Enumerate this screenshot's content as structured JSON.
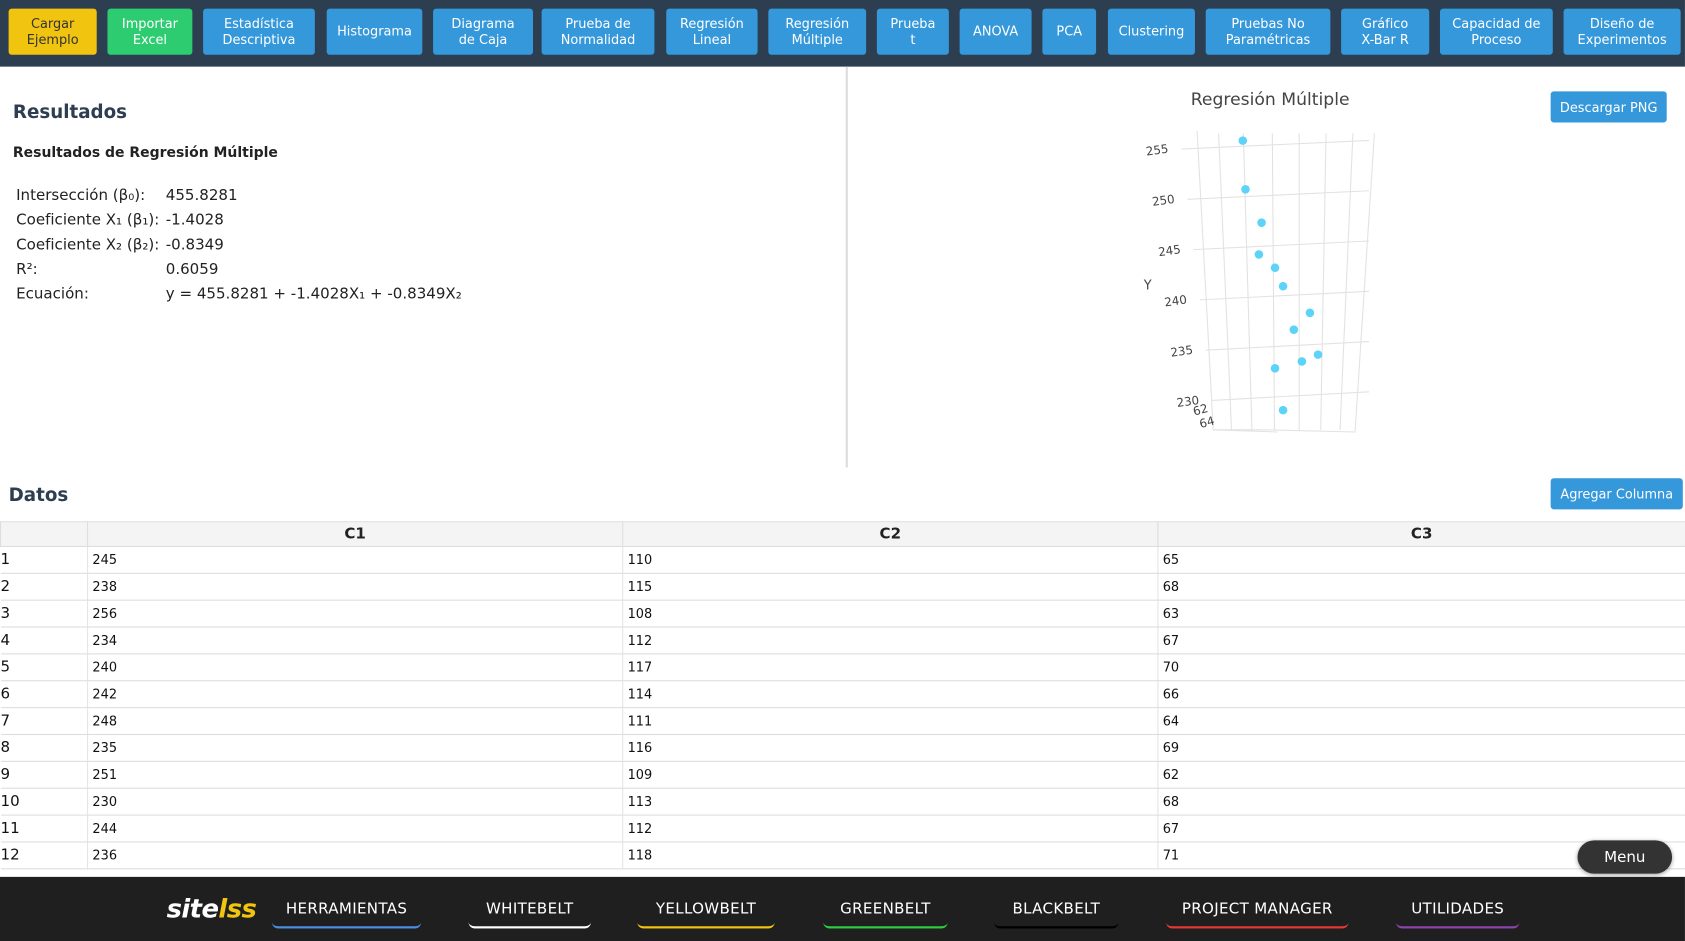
{
  "toolbar": {
    "buttons": [
      "Cargar\nEjemplo",
      "Importar\nExcel",
      "Estadística\nDescriptiva",
      "Histograma",
      "Diagrama\nde Caja",
      "Prueba de\nNormalidad",
      "Regresión\nLineal",
      "Regresión\nMúltiple",
      "Prueba\nt",
      "ANOVA",
      "PCA",
      "Clustering",
      "Pruebas No\nParamétricas",
      "Gráfico\nX-Bar R",
      "Capacidad de\nProceso",
      "Diseño de\nExperimentos"
    ]
  },
  "results": {
    "heading": "Resultados",
    "subheading": "Resultados de Regresión Múltiple",
    "rows": [
      {
        "label": "Intersección (β₀):",
        "value": "455.8281"
      },
      {
        "label": "Coeficiente X₁ (β₁):",
        "value": "-1.4028"
      },
      {
        "label": "Coeficiente X₂ (β₂):",
        "value": "-0.8349"
      },
      {
        "label": "R²:",
        "value": "0.6059"
      },
      {
        "label": "Ecuación:",
        "value": "y = 455.8281 + -1.4028X₁ + -0.8349X₂"
      }
    ]
  },
  "chart_data": {
    "type": "scatter3d",
    "title": "Regresión Múltiple",
    "y_label": "Y",
    "ylim": [
      229,
      257
    ],
    "yticks": [
      230,
      235,
      240,
      245,
      250,
      255
    ],
    "xlim": [
      62,
      72
    ],
    "xticks": [
      62,
      64
    ],
    "color": "#5dd3f8",
    "download_button": "Descargar PNG"
  },
  "data_section": {
    "heading": "Datos",
    "add_column_button": "Agregar Columna",
    "columns": [
      "C1",
      "C2",
      "C3"
    ],
    "rows": [
      [
        1,
        245,
        110,
        65
      ],
      [
        2,
        238,
        115,
        68
      ],
      [
        3,
        256,
        108,
        63
      ],
      [
        4,
        234,
        112,
        67
      ],
      [
        5,
        240,
        117,
        70
      ],
      [
        6,
        242,
        114,
        66
      ],
      [
        7,
        248,
        111,
        64
      ],
      [
        8,
        235,
        116,
        69
      ],
      [
        9,
        251,
        109,
        62
      ],
      [
        10,
        230,
        113,
        68
      ],
      [
        11,
        244,
        112,
        67
      ],
      [
        12,
        236,
        118,
        71
      ]
    ]
  },
  "menu_button": "Menu",
  "footer": {
    "logo_site": "site",
    "logo_lss": "lss",
    "nav": [
      {
        "label": "HERRAMIENTAS",
        "color": "#4a90e2"
      },
      {
        "label": "WHITEBELT",
        "color": "#ffffff"
      },
      {
        "label": "YELLOWBELT",
        "color": "#f1c40f"
      },
      {
        "label": "GREENBELT",
        "color": "#2ecc40"
      },
      {
        "label": "BLACKBELT",
        "color": "#000000"
      },
      {
        "label": "PROJECT MANAGER",
        "color": "#e53935"
      },
      {
        "label": "UTILIDADES",
        "color": "#8e44ad"
      }
    ]
  }
}
